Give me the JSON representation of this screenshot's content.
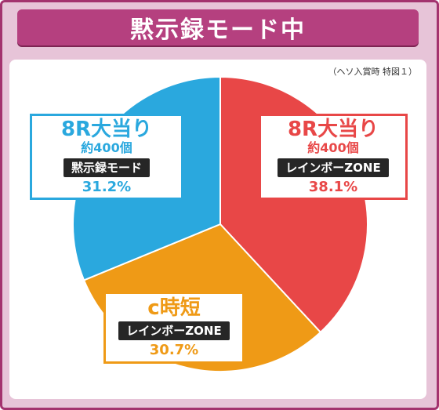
{
  "title": "黙示録モード中",
  "note": "（ヘソ入賞時 特図１）",
  "colors": {
    "frame": "#e7c4d8",
    "title_bg": "#b5407f",
    "blue": "#2aa8de",
    "red": "#e84747",
    "orange": "#ef9a16"
  },
  "labels": {
    "blue": {
      "main": "8R大当り",
      "sub": "約400個",
      "mode": "黙示録モード",
      "pct": "31.2%"
    },
    "red": {
      "main": "8R大当り",
      "sub": "約400個",
      "mode": "レインボーZONE",
      "pct": "38.1%"
    },
    "orange": {
      "main": "c時短",
      "mode": "レインボーZONE",
      "pct": "30.7%"
    }
  },
  "chart_data": {
    "type": "pie",
    "title": "黙示録モード中",
    "slices": [
      {
        "label": "8R大当り 約400個 レインボーZONE",
        "value": 38.1,
        "color": "#e84747"
      },
      {
        "label": "c時短 レインボーZONE",
        "value": 30.7,
        "color": "#ef9a16"
      },
      {
        "label": "8R大当り 約400個 黙示録モード",
        "value": 31.2,
        "color": "#2aa8de"
      }
    ]
  }
}
